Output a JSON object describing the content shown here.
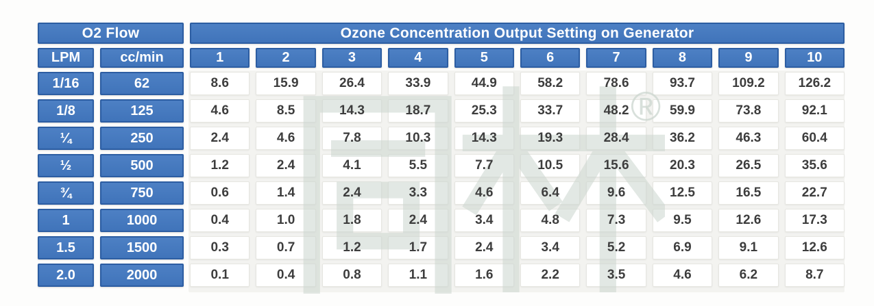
{
  "chart_data": {
    "type": "table",
    "title": "Ozone Concentration Output Setting on Generator",
    "col_group_header": "O2 Flow",
    "columns": [
      "LPM",
      "cc/min",
      "1",
      "2",
      "3",
      "4",
      "5",
      "6",
      "7",
      "8",
      "9",
      "10"
    ],
    "rows": [
      {
        "lpm": "1/16",
        "cc_min": "62",
        "values": [
          "8.6",
          "15.9",
          "26.4",
          "33.9",
          "44.9",
          "58.2",
          "78.6",
          "93.7",
          "109.2",
          "126.2"
        ]
      },
      {
        "lpm": "1/8",
        "cc_min": "125",
        "values": [
          "4.6",
          "8.5",
          "14.3",
          "18.7",
          "25.3",
          "33.7",
          "48.2",
          "59.9",
          "73.8",
          "92.1"
        ]
      },
      {
        "lpm": "¼",
        "cc_min": "250",
        "values": [
          "2.4",
          "4.6",
          "7.8",
          "10.3",
          "14.3",
          "19.3",
          "28.4",
          "36.2",
          "46.3",
          "60.4"
        ]
      },
      {
        "lpm": "½",
        "cc_min": "500",
        "values": [
          "1.2",
          "2.4",
          "4.1",
          "5.5",
          "7.7",
          "10.5",
          "15.6",
          "20.3",
          "26.5",
          "35.6"
        ]
      },
      {
        "lpm": "¾",
        "cc_min": "750",
        "values": [
          "0.6",
          "1.4",
          "2.4",
          "3.3",
          "4.6",
          "6.4",
          "9.6",
          "12.5",
          "16.5",
          "22.7"
        ]
      },
      {
        "lpm": "1",
        "cc_min": "1000",
        "values": [
          "0.4",
          "1.0",
          "1.8",
          "2.4",
          "3.4",
          "4.8",
          "7.3",
          "9.5",
          "12.6",
          "17.3"
        ]
      },
      {
        "lpm": "1.5",
        "cc_min": "1500",
        "values": [
          "0.3",
          "0.7",
          "1.2",
          "1.7",
          "2.4",
          "3.4",
          "5.2",
          "6.9",
          "9.1",
          "12.6"
        ]
      },
      {
        "lpm": "2.0",
        "cc_min": "2000",
        "values": [
          "0.1",
          "0.4",
          "0.8",
          "1.1",
          "1.6",
          "2.2",
          "3.5",
          "4.6",
          "6.2",
          "8.7"
        ]
      }
    ]
  },
  "watermark": {
    "text": "同林",
    "registered_mark": "®"
  },
  "colors": {
    "header_blue": "#4074ba",
    "header_blue_border": "#2c5da2",
    "value_text": "#3d3d3d",
    "watermark_gray": "#ccd6cf"
  }
}
